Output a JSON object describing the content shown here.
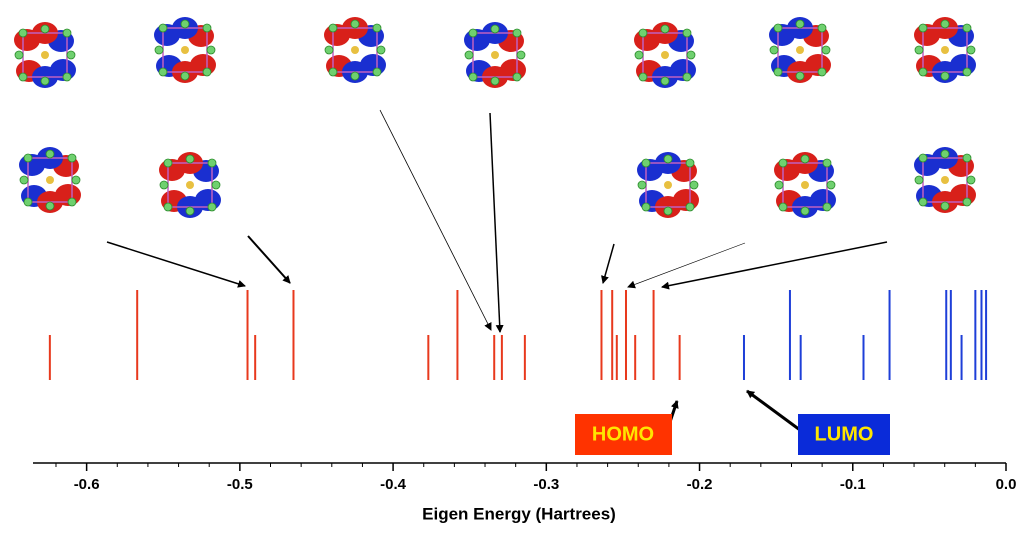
{
  "chart_data": {
    "type": "spike",
    "x_label": "Eigen Energy (Hartrees)",
    "xlim": [
      -0.635,
      0
    ],
    "xticks": [
      -0.6,
      -0.5,
      -0.4,
      -0.3,
      -0.2,
      -0.1,
      {
        "value": 0,
        "label": "0.0"
      }
    ],
    "minor_xticks": [
      -0.62,
      -0.58,
      -0.56,
      -0.54,
      -0.52,
      -0.48,
      -0.46,
      -0.44,
      -0.42,
      -0.38,
      -0.36,
      -0.34,
      -0.32,
      -0.28,
      -0.26,
      -0.24,
      -0.22,
      -0.18,
      -0.16,
      -0.14,
      -0.12,
      -0.08,
      -0.06,
      -0.04,
      -0.02
    ],
    "series": [
      {
        "color": "#e8391d",
        "x": [
          -0.624,
          -0.567,
          -0.495,
          -0.49,
          -0.465,
          -0.377,
          -0.358,
          -0.334,
          -0.329,
          -0.314,
          -0.264,
          -0.257,
          -0.254,
          -0.248,
          -0.242,
          -0.23,
          -0.213
        ],
        "values": [
          1,
          2,
          2,
          1,
          2,
          1,
          2,
          1,
          1,
          1,
          2,
          2,
          1,
          2,
          1,
          2,
          1
        ]
      },
      {
        "color": "#1e3fd8",
        "x": [
          -0.171,
          -0.141,
          -0.134,
          -0.093,
          -0.076,
          -0.039,
          -0.036,
          -0.029,
          -0.02,
          -0.016,
          -0.013
        ],
        "values": [
          1,
          2,
          1,
          1,
          2,
          2,
          2,
          1,
          2,
          2,
          2
        ]
      }
    ],
    "annotations": [
      {
        "text": "HOMO",
        "color": "#ff3300"
      },
      {
        "text": "LUMO",
        "color": "#0a2bd9"
      }
    ]
  }
}
